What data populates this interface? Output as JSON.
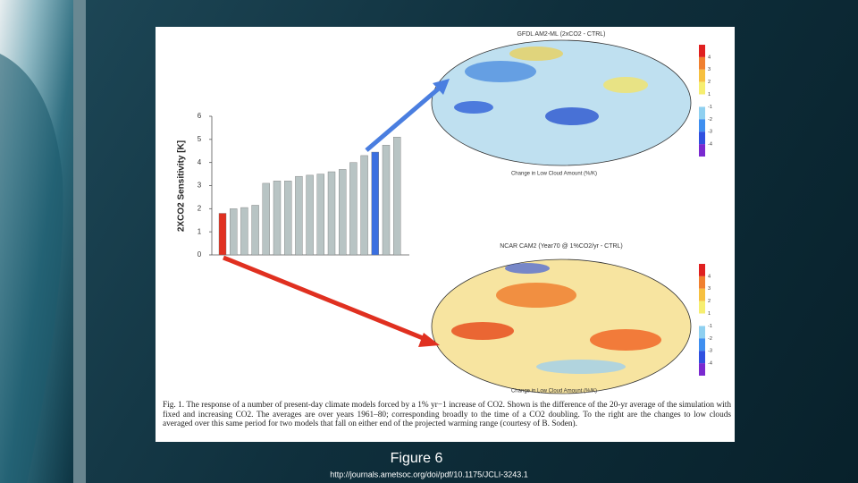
{
  "slide": {
    "figure_label": "Figure 6",
    "source_url": "http://journals.ametsoc.org/doi/pdf/10.1175/JCLI-3243.1"
  },
  "chart_data": {
    "type": "bar",
    "y_label": "2XCO2 Sensitivity [K]",
    "values": [
      1.8,
      2.0,
      2.05,
      2.15,
      3.1,
      3.2,
      3.2,
      3.4,
      3.45,
      3.5,
      3.6,
      3.7,
      4.0,
      4.3,
      4.45,
      4.75,
      5.1
    ],
    "colors": [
      "#e03020",
      "#b8c4c4",
      "#b8c4c4",
      "#b8c4c4",
      "#b8c4c4",
      "#b8c4c4",
      "#b8c4c4",
      "#b8c4c4",
      "#b8c4c4",
      "#b8c4c4",
      "#b8c4c4",
      "#b8c4c4",
      "#b8c4c4",
      "#b8c4c4",
      "#3a6fe0",
      "#b8c4c4",
      "#b8c4c4"
    ],
    "ylim": [
      0,
      6
    ],
    "yticks": [
      0,
      1,
      2,
      3,
      4,
      5,
      6
    ]
  },
  "maps": [
    {
      "title": "GFDL AM2-ML (2xCO2 - CTRL)",
      "subtitle": "Change in Low Cloud Amount (%/K)"
    },
    {
      "title": "NCAR CAM2 (Year70 @ 1%CO2/yr - CTRL)",
      "subtitle": "Change in Low Cloud Amount (%/K)"
    }
  ],
  "colorbar_ticks": [
    4,
    3,
    2,
    1,
    -1,
    -2,
    -3,
    -4
  ],
  "caption": "Fig. 1. The response of a number of present-day climate models forced by a 1% yr−1 increase of CO2. Shown is the difference of the 20-yr average of the simulation with fixed and increasing CO2. The averages are over years 1961–80; corresponding broadly to the time of a CO2 doubling. To the right are the changes to low clouds averaged over this same period for two models that fall on either end of the projected warming range (courtesy of B. Soden)."
}
